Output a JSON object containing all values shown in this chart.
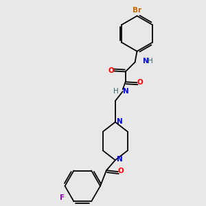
{
  "bg_color": "#e8e8e8",
  "atom_colors": {
    "C": "#000000",
    "N": "#0000ee",
    "O": "#ff0000",
    "Br": "#cc6600",
    "F": "#8800aa",
    "H": "#336666"
  },
  "bond_color": "#000000",
  "figsize": [
    3.0,
    3.0
  ],
  "dpi": 100,
  "font_size": 7.5
}
